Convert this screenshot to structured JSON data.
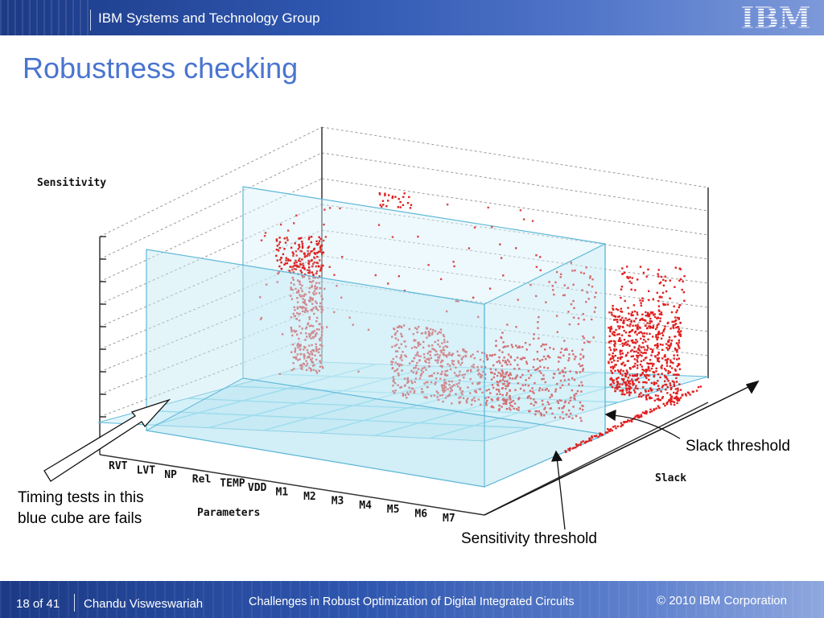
{
  "header": {
    "group_name": "IBM Systems and Technology Group",
    "logo_text": "IBM"
  },
  "slide": {
    "title": "Robustness checking"
  },
  "figure": {
    "sensitivity_label": "Sensitivity",
    "parameters_label": "Parameters",
    "slack_label": "Slack",
    "parameter_names": [
      "RVT",
      "LVT",
      "NP",
      "Rel",
      "TEMP",
      "VDD",
      "M1",
      "M2",
      "M3",
      "M4",
      "M5",
      "M6",
      "M7"
    ],
    "colors": {
      "points": "#e02020",
      "points_light": "#d94848",
      "cube_fill": "#c8ecf4",
      "cube_edge": "#5fb8d8",
      "grid": "#7fd4e8"
    }
  },
  "annotations": {
    "fails_line1": "Timing tests in this",
    "fails_line2": "blue cube are fails",
    "slack_threshold": "Slack threshold",
    "sensitivity_threshold": "Sensitivity threshold"
  },
  "footer": {
    "page": "18 of 41",
    "author": "Chandu Visweswariah",
    "talk_title": "Challenges in Robust Optimization of Digital Integrated Circuits",
    "copyright": "© 2010 IBM Corporation"
  }
}
